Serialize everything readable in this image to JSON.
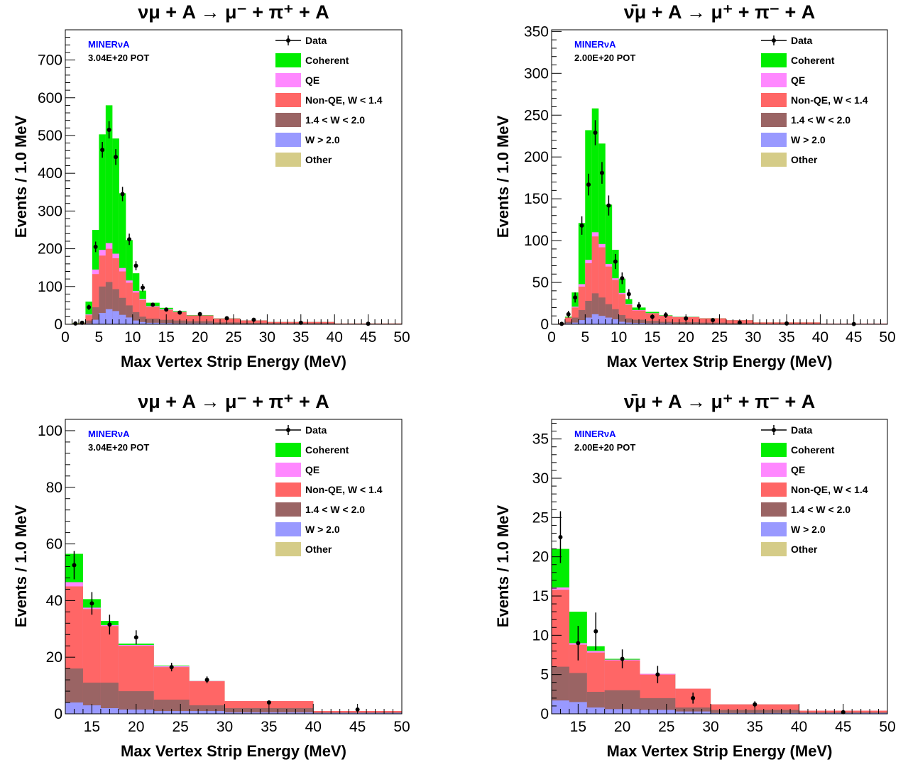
{
  "title_nu": "νμ + A → μ⁻ + π⁺ + A",
  "title_nubar": "ν̄μ + A → μ⁺ + π⁻ + A",
  "xlabel": "Max Vertex Strip Energy (MeV)",
  "ylabel": "Events / 1.0 MeV",
  "experiment": "MINERνA",
  "pot_nu": "3.04E+20 POT",
  "pot_nubar": "2.00E+20 POT",
  "legend": [
    "Data",
    "Coherent",
    "QE",
    "Non-QE, W < 1.4",
    "1.4 < W < 2.0",
    "W > 2.0",
    "Other"
  ],
  "colors": {
    "Coherent": "#00ee00",
    "QE": "#ff88ff",
    "Non-QE": "#ff6666",
    "MidW": "#9a6464",
    "HighW": "#9999ff",
    "Other": "#d5cc88",
    "experiment": "#0000ff"
  },
  "chart_data": [
    {
      "type": "bar",
      "stacked": true,
      "title": "νμ + A → μ⁻ + π⁺ + A",
      "xlabel": "Max Vertex Strip Energy (MeV)",
      "ylabel": "Events / 1.0 MeV",
      "xlim": [
        0,
        50
      ],
      "ylim": [
        0,
        780
      ],
      "yticks": [
        0,
        100,
        200,
        300,
        400,
        500,
        600,
        700
      ],
      "xticks": [
        0,
        5,
        10,
        15,
        20,
        25,
        30,
        35,
        40,
        45,
        50
      ],
      "bin_edges": [
        0,
        1,
        2,
        3,
        4,
        5,
        6,
        7,
        8,
        9,
        10,
        11,
        12,
        14,
        16,
        18,
        22,
        26,
        30,
        40,
        50
      ],
      "series": [
        {
          "name": "W > 2.0",
          "values": [
            0,
            0,
            0,
            2,
            12,
            30,
            40,
            35,
            25,
            18,
            10,
            6,
            4,
            3,
            2,
            2,
            1,
            1,
            1,
            0.5
          ]
        },
        {
          "name": "1.4 < W < 2.0",
          "values": [
            0,
            1,
            1,
            8,
            33,
            70,
            72,
            58,
            45,
            32,
            22,
            14,
            11,
            9,
            8,
            6,
            4,
            3,
            2,
            0.5
          ]
        },
        {
          "name": "Non-QE, W < 1.4",
          "values": [
            1,
            1,
            2,
            14,
            88,
            82,
            88,
            82,
            70,
            60,
            52,
            44,
            31,
            26,
            22,
            15,
            10,
            6,
            3,
            1
          ]
        },
        {
          "name": "QE",
          "values": [
            0,
            0,
            0,
            2,
            12,
            15,
            15,
            12,
            9,
            6,
            4,
            3,
            2,
            1.5,
            1,
            0.5,
            0.5,
            0.2,
            0.1,
            0
          ]
        },
        {
          "name": "Coherent",
          "values": [
            0,
            1,
            1,
            34,
            105,
            306,
            365,
            305,
            198,
            107,
            47,
            22,
            9,
            4,
            2,
            1,
            0.5,
            0.3,
            0.1,
            0
          ]
        },
        {
          "name": "Other",
          "values": [
            0,
            0,
            0,
            0,
            0,
            0,
            0,
            0,
            0,
            0,
            0,
            0,
            0,
            0,
            0,
            0,
            0,
            0,
            0,
            0
          ]
        }
      ],
      "data_points": {
        "x": [
          1.5,
          2.5,
          3.5,
          4.5,
          5.5,
          6.5,
          7.5,
          8.5,
          9.5,
          10.5,
          11.5,
          13,
          15,
          17,
          20,
          24,
          28,
          35,
          45
        ],
        "y": [
          2,
          4,
          45,
          205,
          462,
          515,
          443,
          345,
          225,
          155,
          97,
          52,
          39,
          31,
          27,
          16,
          12,
          4,
          1.5
        ],
        "err": [
          2,
          2,
          7,
          14,
          21,
          23,
          21,
          19,
          15,
          12,
          10,
          5,
          4,
          3.5,
          3,
          2,
          1.8,
          1,
          0.6
        ]
      }
    },
    {
      "type": "bar",
      "stacked": true,
      "title": "ν̄μ + A → μ⁺ + π⁻ + A",
      "xlabel": "Max Vertex Strip Energy (MeV)",
      "ylabel": "Events / 1.0 MeV",
      "xlim": [
        0,
        50
      ],
      "ylim": [
        0,
        352
      ],
      "yticks": [
        0,
        50,
        100,
        150,
        200,
        250,
        300,
        350
      ],
      "xticks": [
        0,
        5,
        10,
        15,
        20,
        25,
        30,
        35,
        40,
        45,
        50
      ],
      "bin_edges": [
        0,
        1,
        2,
        3,
        4,
        5,
        6,
        7,
        8,
        9,
        10,
        11,
        12,
        14,
        16,
        18,
        22,
        26,
        30,
        40,
        50
      ],
      "series": [
        {
          "name": "W > 2.0",
          "values": [
            0,
            0,
            1,
            2,
            5,
            8,
            12,
            10,
            8,
            6,
            3,
            2,
            1.5,
            1,
            1,
            0.5,
            0.5,
            0.3,
            0.2,
            0.1
          ]
        },
        {
          "name": "1.4 < W < 2.0",
          "values": [
            0,
            0,
            2,
            6,
            12,
            20,
            25,
            22,
            16,
            12,
            8,
            5,
            4,
            3,
            2,
            2,
            1.5,
            1,
            0.5,
            0.2
          ]
        },
        {
          "name": "Non-QE, W < 1.4",
          "values": [
            0,
            1,
            5,
            12,
            28,
            45,
            68,
            60,
            45,
            35,
            25,
            16,
            11,
            9,
            7,
            6,
            5,
            3.5,
            1.5,
            0.5
          ]
        },
        {
          "name": "QE",
          "values": [
            0,
            0,
            0,
            1,
            3,
            4,
            5,
            4,
            3,
            2,
            1.5,
            1,
            0.5,
            0.3,
            0.3,
            0.2,
            0.1,
            0.1,
            0,
            0
          ]
        },
        {
          "name": "Coherent",
          "values": [
            0,
            0,
            1,
            17,
            73,
            155,
            148,
            120,
            71,
            34,
            17,
            6,
            3,
            1.5,
            0.5,
            0.3,
            0.2,
            0.1,
            0,
            0
          ]
        },
        {
          "name": "Other",
          "values": [
            0,
            0,
            0,
            0,
            0,
            0,
            0,
            0,
            0,
            0,
            0,
            0,
            0,
            0,
            0,
            0,
            0,
            0,
            0,
            0
          ]
        }
      ],
      "data_points": {
        "x": [
          1.5,
          2.5,
          3.5,
          4.5,
          5.5,
          6.5,
          7.5,
          8.5,
          9.5,
          10.5,
          11.5,
          13,
          15,
          17,
          20,
          24,
          28,
          35,
          45
        ],
        "y": [
          0.5,
          12,
          32,
          118,
          167,
          229,
          181,
          142,
          75,
          55,
          36,
          22,
          9,
          11,
          7,
          5,
          2,
          1,
          0.3
        ],
        "err": [
          1,
          4,
          6,
          11,
          13,
          15,
          13,
          12,
          9,
          7,
          6,
          4.5,
          3,
          3.3,
          2.6,
          2.2,
          1.4,
          1,
          0.5
        ]
      }
    },
    {
      "type": "bar",
      "stacked": true,
      "title": "νμ + A → μ⁻ + π⁺ + A",
      "xlabel": "Max Vertex Strip Energy (MeV)",
      "ylabel": "Events / 1.0 MeV",
      "xlim": [
        12,
        50
      ],
      "ylim": [
        0,
        104
      ],
      "yticks": [
        0,
        20,
        40,
        60,
        80,
        100
      ],
      "xticks": [
        15,
        20,
        25,
        30,
        35,
        40,
        45,
        50
      ],
      "bin_edges": [
        12,
        14,
        16,
        18,
        22,
        26,
        30,
        40,
        50
      ],
      "series": [
        {
          "name": "W > 2.0",
          "values": [
            4,
            3,
            2,
            1.5,
            1,
            1,
            0.5,
            0.3
          ]
        },
        {
          "name": "1.4 < W < 2.0",
          "values": [
            12,
            8,
            9,
            6.5,
            4,
            2,
            1.5,
            0.2
          ]
        },
        {
          "name": "Non-QE, W < 1.4",
          "values": [
            29,
            26,
            20,
            16,
            11.5,
            8.5,
            2.5,
            0.5
          ]
        },
        {
          "name": "QE",
          "values": [
            1.5,
            0.5,
            0.3,
            0.3,
            0.3,
            0.1,
            0,
            0
          ]
        },
        {
          "name": "Coherent",
          "values": [
            10,
            3,
            1.5,
            0.5,
            0.2,
            0,
            0,
            0
          ]
        },
        {
          "name": "Other",
          "values": [
            0,
            0,
            0,
            0,
            0,
            0,
            0,
            0
          ]
        }
      ],
      "data_points": {
        "x": [
          13,
          15,
          17,
          20,
          24,
          28,
          35,
          45
        ],
        "y": [
          52.5,
          39,
          31.5,
          27,
          16.5,
          12,
          4,
          1.5
        ],
        "err": [
          5,
          4,
          3.5,
          2.5,
          1.5,
          1.2,
          0.5,
          0.4
        ]
      }
    },
    {
      "type": "bar",
      "stacked": true,
      "title": "ν̄μ + A → μ⁺ + π⁻ + A",
      "xlabel": "Max Vertex Strip Energy (MeV)",
      "ylabel": "Events / 1.0 MeV",
      "xlim": [
        12,
        50
      ],
      "ylim": [
        0,
        37.5
      ],
      "yticks": [
        0,
        5,
        10,
        15,
        20,
        25,
        30,
        35
      ],
      "xticks": [
        15,
        20,
        25,
        30,
        35,
        40,
        45,
        50
      ],
      "bin_edges": [
        12,
        14,
        16,
        18,
        22,
        26,
        30,
        40,
        50
      ],
      "series": [
        {
          "name": "W > 2.0",
          "values": [
            1.7,
            1.5,
            0.8,
            0.6,
            0.5,
            0.3,
            0.1,
            0.1
          ]
        },
        {
          "name": "1.4 < W < 2.0",
          "values": [
            4.3,
            3.7,
            2,
            2.4,
            1.5,
            0.5,
            0.4,
            0.1
          ]
        },
        {
          "name": "Non-QE, W < 1.4",
          "values": [
            9.8,
            3.6,
            5,
            3.8,
            3,
            2.4,
            0.7,
            0.2
          ]
        },
        {
          "name": "QE",
          "values": [
            0.3,
            0.2,
            0.2,
            0.1,
            0.1,
            0,
            0,
            0
          ]
        },
        {
          "name": "Coherent",
          "values": [
            4.9,
            4,
            0.6,
            0.1,
            0,
            0,
            0,
            0
          ]
        },
        {
          "name": "Other",
          "values": [
            0,
            0,
            0,
            0,
            0,
            0,
            0,
            0
          ]
        }
      ],
      "data_points": {
        "x": [
          13,
          15,
          17,
          20,
          24,
          28,
          35,
          45
        ],
        "y": [
          22.5,
          9,
          10.5,
          7,
          5,
          2,
          1.2,
          0.2
        ],
        "err": [
          3.3,
          2.2,
          2.4,
          1.2,
          1.1,
          0.7,
          0.4,
          0.3
        ]
      }
    }
  ]
}
